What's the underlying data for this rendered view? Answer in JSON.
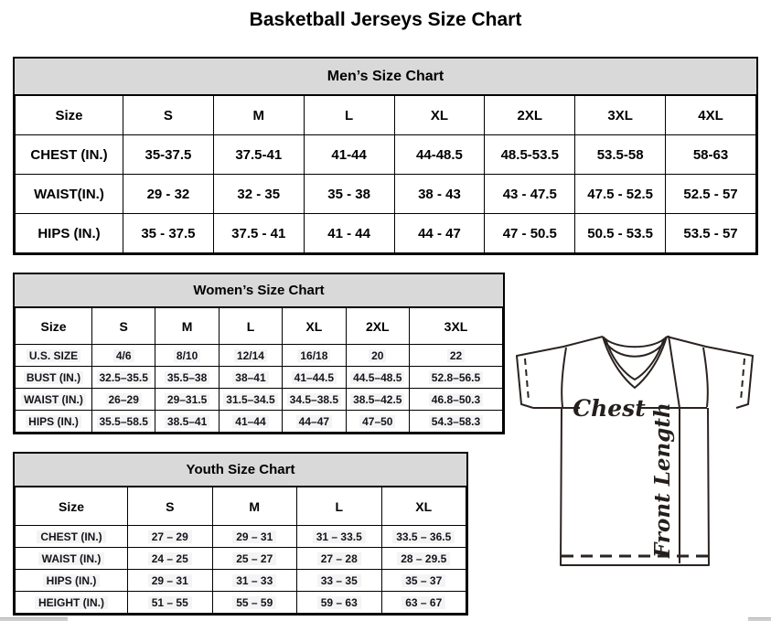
{
  "page_title": "Basketball Jerseys Size Chart",
  "colors": {
    "table_title_bg": "#d9d9d9",
    "border": "#000000",
    "text": "#000000",
    "cell_highlight": "#f4f4f4",
    "diagram_stroke": "#2a2320",
    "scrollbar": "#cfcfcf"
  },
  "tables": {
    "men": {
      "title": "Men’s Size Chart",
      "header": [
        "Size",
        "S",
        "M",
        "L",
        "XL",
        "2XL",
        "3XL",
        "4XL"
      ],
      "rows": [
        [
          "CHEST (IN.)",
          "35-37.5",
          "37.5-41",
          "41-44",
          "44-48.5",
          "48.5-53.5",
          "53.5-58",
          "58-63"
        ],
        [
          "WAIST(IN.)",
          "29 - 32",
          "32 - 35",
          "35 - 38",
          "38 - 43",
          "43 - 47.5",
          "47.5 - 52.5",
          "52.5 - 57"
        ],
        [
          "HIPS (IN.)",
          "35 - 37.5",
          "37.5 - 41",
          "41 - 44",
          "44 - 47",
          "47 - 50.5",
          "50.5 - 53.5",
          "53.5 - 57"
        ]
      ]
    },
    "women": {
      "title": "Women’s Size Chart",
      "header": [
        "Size",
        "S",
        "M",
        "L",
        "XL",
        "2XL",
        "3XL"
      ],
      "rows": [
        [
          "U.S. SIZE",
          "4/6",
          "8/10",
          "12/14",
          "16/18",
          "20",
          "22"
        ],
        [
          "BUST (IN.)",
          "32.5–35.5",
          "35.5–38",
          "38–41",
          "41–44.5",
          "44.5–48.5",
          "52.8–56.5"
        ],
        [
          "WAIST (IN.)",
          "26–29",
          "29–31.5",
          "31.5–34.5",
          "34.5–38.5",
          "38.5–42.5",
          "46.8–50.3"
        ],
        [
          "HIPS (IN.)",
          "35.5–58.5",
          "38.5–41",
          "41–44",
          "44–47",
          "47–50",
          "54.3–58.3"
        ]
      ]
    },
    "youth": {
      "title": "Youth Size Chart",
      "header": [
        "Size",
        "S",
        "M",
        "L",
        "XL"
      ],
      "rows": [
        [
          "CHEST (IN.)",
          "27 – 29",
          "29 – 31",
          "31 – 33.5",
          "33.5 – 36.5"
        ],
        [
          "WAIST (IN.)",
          "24 – 25",
          "25 – 27",
          "27 – 28",
          "28 – 29.5"
        ],
        [
          "HIPS (IN.)",
          "29 – 31",
          "31 – 33",
          "33 – 35",
          "35 – 37"
        ],
        [
          "HEIGHT (IN.)",
          "51 – 55",
          "55 – 59",
          "59 – 63",
          "63 – 67"
        ]
      ]
    }
  },
  "diagram": {
    "chest_label": "Chest",
    "front_length_label": "Front Length"
  }
}
